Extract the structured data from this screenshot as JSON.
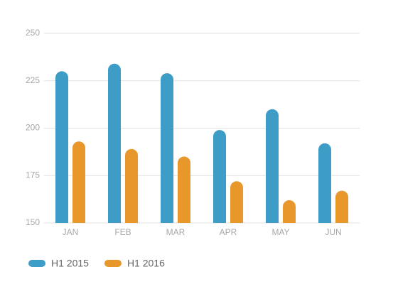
{
  "chart_data": {
    "type": "bar",
    "categories": [
      "JAN",
      "FEB",
      "MAR",
      "APR",
      "MAY",
      "JUN"
    ],
    "series": [
      {
        "name": "H1 2015",
        "color": "#3d9dc6",
        "values": [
          230,
          234,
          229,
          199,
          210,
          192
        ]
      },
      {
        "name": "H1 2016",
        "color": "#e8982a",
        "values": [
          193,
          189,
          185,
          172,
          162,
          167
        ]
      }
    ],
    "ylim": [
      150,
      250
    ],
    "yticks": [
      150,
      175,
      200,
      225,
      250
    ],
    "grid": true,
    "legend": "bottom-left"
  }
}
